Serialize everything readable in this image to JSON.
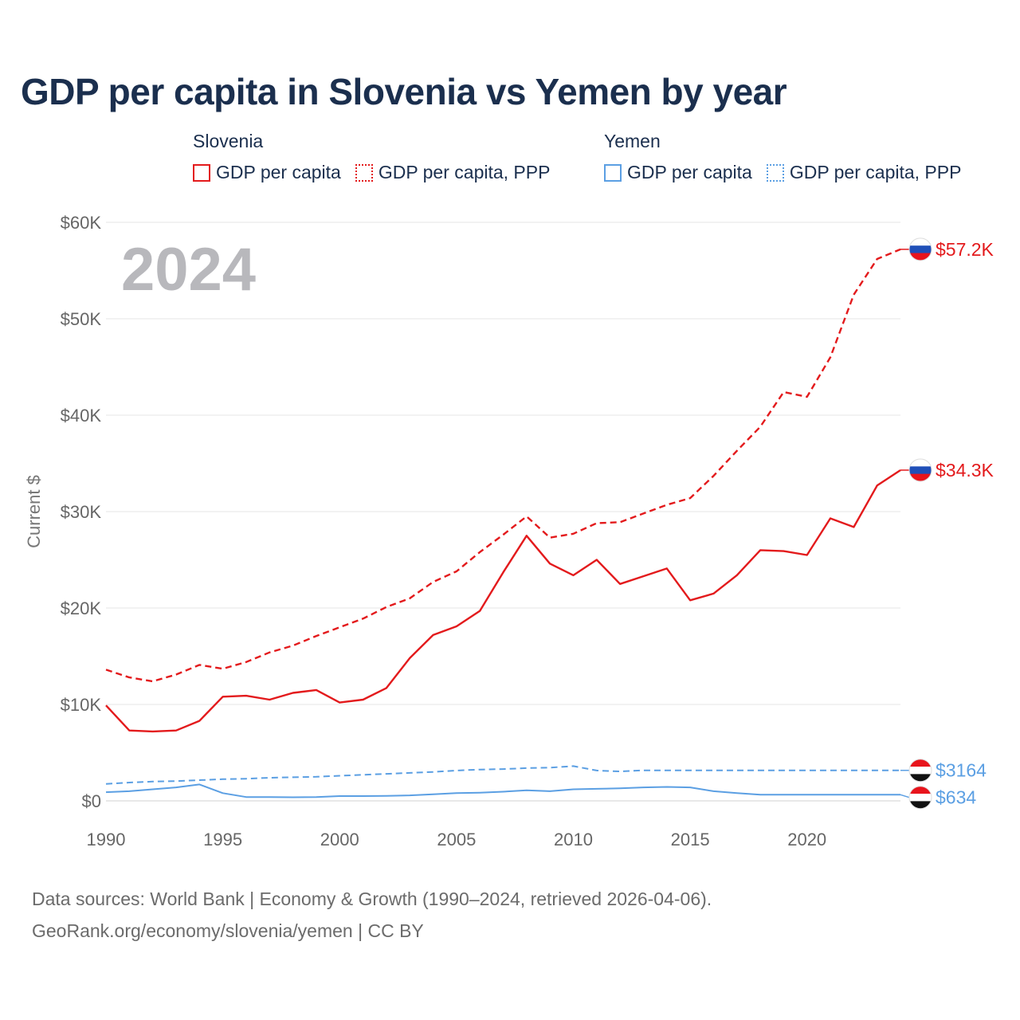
{
  "title": "GDP per capita in Slovenia vs Yemen by year",
  "legend": {
    "slovenia": {
      "name": "Slovenia",
      "solid": "GDP per capita",
      "dashed": "GDP per capita, PPP"
    },
    "yemen": {
      "name": "Yemen",
      "solid": "GDP per capita",
      "dashed": "GDP per capita, PPP"
    }
  },
  "colors": {
    "slovenia": "#e31a1c",
    "yemen": "#5b9fe3",
    "grid": "#e4e4e4",
    "year": "#b8b8bc"
  },
  "footer": {
    "line1": "Data sources: World Bank | Economy & Growth (1990–2024, retrieved 2026-04-06).",
    "line2": "GeoRank.org/economy/slovenia/yemen | CC BY"
  },
  "chart_data": {
    "type": "line",
    "title": "GDP per capita in Slovenia vs Yemen by year",
    "current_year": "2024",
    "ylabel": "Current $",
    "xlabel": "",
    "xlim": [
      1990,
      2024
    ],
    "ylim": [
      0,
      60000
    ],
    "y_ticks": [
      0,
      10000,
      20000,
      30000,
      40000,
      50000,
      60000
    ],
    "y_tick_labels": [
      "$0",
      "$10K",
      "$20K",
      "$30K",
      "$40K",
      "$50K",
      "$60K"
    ],
    "x_ticks": [
      1990,
      1995,
      2000,
      2005,
      2010,
      2015,
      2020
    ],
    "x_tick_labels": [
      "1990",
      "1995",
      "2000",
      "2005",
      "2010",
      "2015",
      "2020"
    ],
    "grid": true,
    "series": [
      {
        "name": "Slovenia GDP per capita",
        "country": "slovenia",
        "style": "solid",
        "end_label": "$34.3K",
        "end_value": 34300,
        "x": [
          1990,
          1991,
          1992,
          1993,
          1994,
          1995,
          1996,
          1997,
          1998,
          1999,
          2000,
          2001,
          2002,
          2003,
          2004,
          2005,
          2006,
          2007,
          2008,
          2009,
          2010,
          2011,
          2012,
          2013,
          2014,
          2015,
          2016,
          2017,
          2018,
          2019,
          2020,
          2021,
          2022,
          2023,
          2024
        ],
        "values": [
          9900,
          7300,
          7200,
          7300,
          8300,
          10800,
          10900,
          10500,
          11200,
          11500,
          10200,
          10500,
          11700,
          14800,
          17200,
          18100,
          19700,
          23700,
          27500,
          24600,
          23400,
          25000,
          22500,
          23300,
          24100,
          20800,
          21500,
          23400,
          26000,
          25900,
          25500,
          29300,
          28400,
          32700,
          34300
        ]
      },
      {
        "name": "Slovenia GDP per capita, PPP",
        "country": "slovenia",
        "style": "dashed",
        "end_label": "$57.2K",
        "end_value": 57200,
        "x": [
          1990,
          1991,
          1992,
          1993,
          1994,
          1995,
          1996,
          1997,
          1998,
          1999,
          2000,
          2001,
          2002,
          2003,
          2004,
          2005,
          2006,
          2007,
          2008,
          2009,
          2010,
          2011,
          2012,
          2013,
          2014,
          2015,
          2016,
          2017,
          2018,
          2019,
          2020,
          2021,
          2022,
          2023,
          2024
        ],
        "values": [
          13600,
          12800,
          12400,
          13100,
          14100,
          13700,
          14400,
          15400,
          16100,
          17100,
          18000,
          18900,
          20100,
          21000,
          22700,
          23800,
          25800,
          27600,
          29500,
          27300,
          27700,
          28800,
          28900,
          29800,
          30700,
          31400,
          33700,
          36300,
          38800,
          42400,
          41900,
          46000,
          52500,
          56200,
          57200
        ]
      },
      {
        "name": "Yemen GDP per capita",
        "country": "yemen",
        "style": "solid",
        "end_label": "$634",
        "end_value": 634,
        "x": [
          1990,
          1991,
          1992,
          1993,
          1994,
          1995,
          1996,
          1997,
          1998,
          1999,
          2000,
          2001,
          2002,
          2003,
          2004,
          2005,
          2006,
          2007,
          2008,
          2009,
          2010,
          2011,
          2012,
          2013,
          2014,
          2015,
          2016,
          2017,
          2018,
          2019,
          2020,
          2021,
          2022,
          2023,
          2024
        ],
        "values": [
          900,
          1000,
          1200,
          1400,
          1700,
          800,
          400,
          400,
          370,
          400,
          500,
          500,
          520,
          570,
          680,
          800,
          850,
          950,
          1100,
          1000,
          1200,
          1250,
          1300,
          1400,
          1450,
          1400,
          1000,
          800,
          634,
          634,
          634,
          634,
          634,
          634,
          634
        ]
      },
      {
        "name": "Yemen GDP per capita, PPP",
        "country": "yemen",
        "style": "dashed",
        "end_label": "$3164",
        "end_value": 3164,
        "x": [
          1990,
          1991,
          1992,
          1993,
          1994,
          1995,
          1996,
          1997,
          1998,
          1999,
          2000,
          2001,
          2002,
          2003,
          2004,
          2005,
          2006,
          2007,
          2008,
          2009,
          2010,
          2011,
          2012,
          2013,
          2014,
          2015,
          2016,
          2017,
          2018,
          2019,
          2020,
          2021,
          2022,
          2023,
          2024
        ],
        "values": [
          1750,
          1900,
          2000,
          2050,
          2150,
          2250,
          2300,
          2400,
          2450,
          2500,
          2600,
          2700,
          2800,
          2900,
          3000,
          3150,
          3250,
          3300,
          3400,
          3450,
          3600,
          3150,
          3050,
          3164,
          3164,
          3164,
          3164,
          3164,
          3164,
          3164,
          3164,
          3164,
          3164,
          3164,
          3164
        ]
      }
    ]
  }
}
